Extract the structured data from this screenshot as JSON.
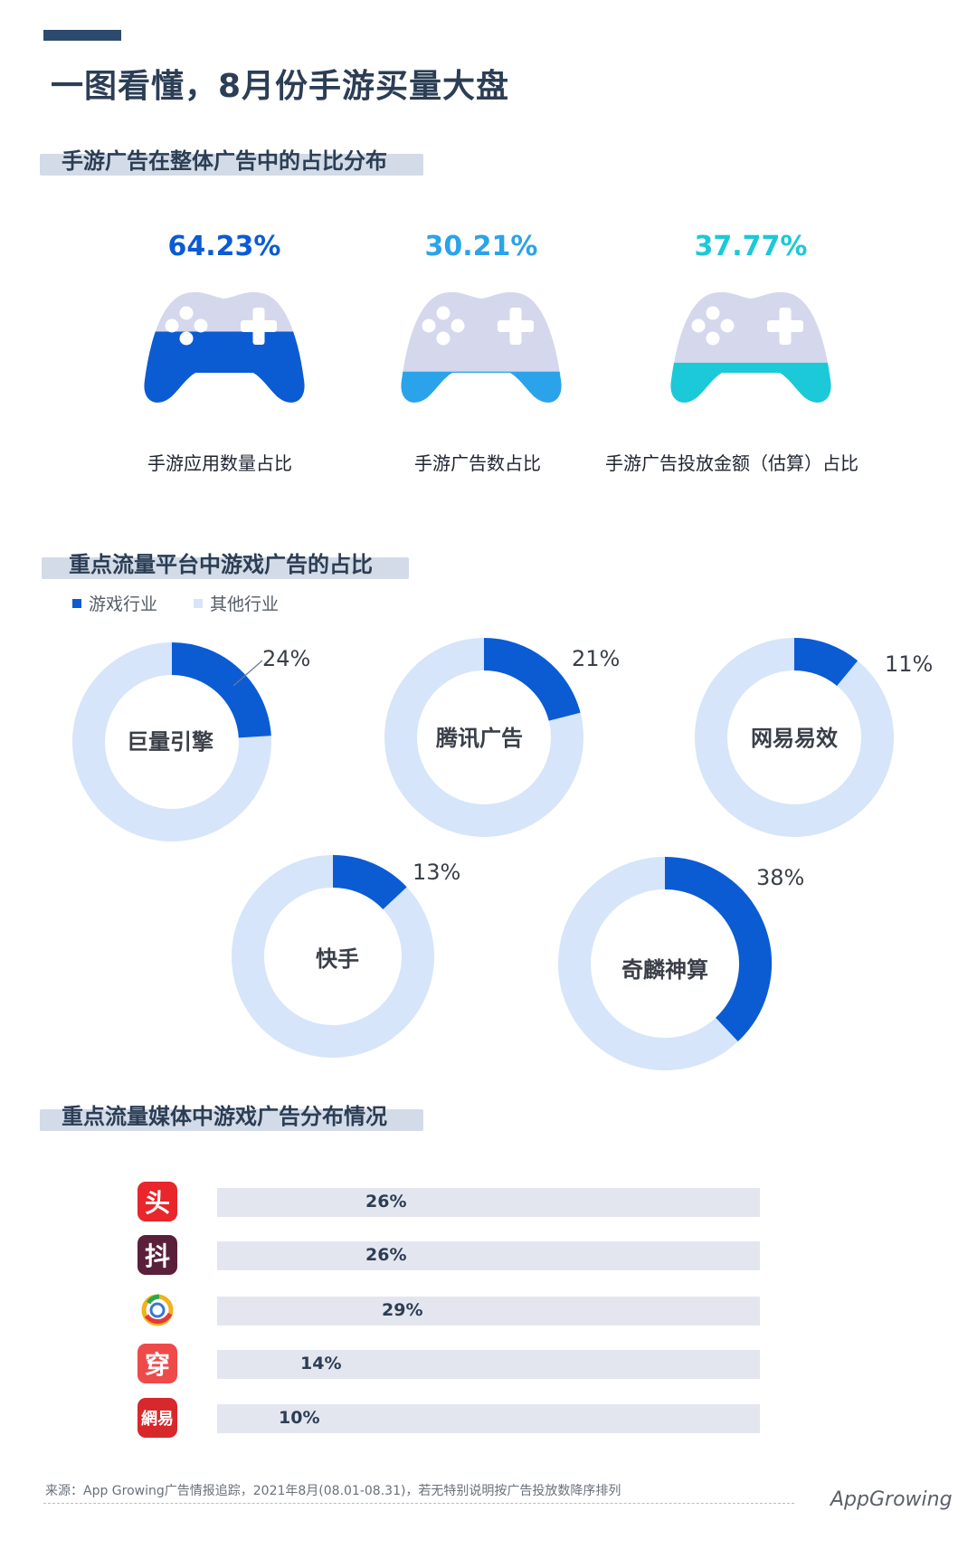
{
  "header": {
    "title": "一图看懂，8月份手游买量大盘"
  },
  "section1": {
    "title": "手游广告在整体广告中的占比分布",
    "pads": [
      {
        "percent_text": "64.23%",
        "value": 64.23,
        "label": "手游应用数量占比",
        "color": "#0b5bd3"
      },
      {
        "percent_text": "30.21%",
        "value": 30.21,
        "label": "手游广告数占比",
        "color": "#2ba3ea"
      },
      {
        "percent_text": "37.77%",
        "value": 37.77,
        "label": "手游广告投放金额（估算）占比",
        "color": "#1bc9d8"
      }
    ],
    "pad_base_color": "#d5d8ec"
  },
  "section2": {
    "title": "重点流量平台中游戏广告的占比",
    "legend": [
      {
        "label": "游戏行业",
        "color": "#0b5bd3"
      },
      {
        "label": "其他行业",
        "color": "#d6e5f9"
      }
    ]
  },
  "section3": {
    "title": "重点流量媒体中游戏广告分布情况",
    "apps": [
      {
        "icon_char": "头",
        "icon": "toutiao-icon",
        "color": "#e8262c"
      },
      {
        "icon_char": "抖",
        "icon": "douyin-icon",
        "color": "#5a1f3a"
      },
      {
        "icon_char": "",
        "icon": "qq-browser-icon",
        "color": "#ffffff"
      },
      {
        "icon_char": "穿",
        "icon": "chuanshanjia-icon",
        "color": "#ef4a4a"
      },
      {
        "icon_char": "網易",
        "icon": "netease-news-icon",
        "color": "#d7282c"
      }
    ]
  },
  "chart_data": [
    {
      "type": "pie",
      "title": "",
      "legend": [
        "游戏行业",
        "其他行业"
      ],
      "charts": [
        {
          "name": "巨量引擎",
          "label": "24%",
          "value": 24
        },
        {
          "name": "腾讯广告",
          "label": "21%",
          "value": 21
        },
        {
          "name": "网易易效",
          "label": "11%",
          "value": 11
        },
        {
          "name": "快手",
          "label": "13%",
          "value": 13
        },
        {
          "name": "奇麟神算",
          "label": "38%",
          "value": 38
        }
      ]
    },
    {
      "type": "bar",
      "orientation": "horizontal",
      "categories": [
        "toutiao",
        "douyin",
        "qq-browser",
        "chuanshanjia",
        "netease-news"
      ],
      "values": [
        26,
        26,
        29,
        14,
        10
      ],
      "labels": [
        "26%",
        "26%",
        "29%",
        "14%",
        "10%"
      ],
      "xlim": [
        0,
        100
      ]
    }
  ],
  "footer": {
    "source": "来源：App Growing广告情报追踪，2021年8月(08.01-08.31)，若无特别说明按广告投放数降序排列",
    "brand": "AppGrowing"
  }
}
